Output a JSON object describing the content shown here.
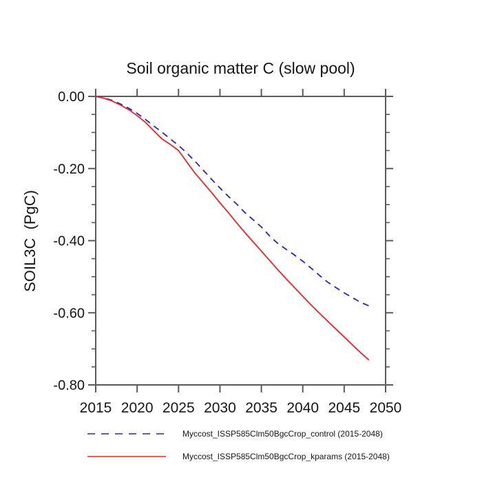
{
  "page": {
    "background": "#ffffff"
  },
  "chart_data": {
    "type": "line",
    "title": "Soil organic matter C (slow pool)",
    "xlabel": "",
    "ylabel": "SOIL3C  (PgC)",
    "xlim": [
      2015,
      2050
    ],
    "ylim": [
      -0.8,
      0.0
    ],
    "grid": false,
    "legend_position": "below-plot",
    "axis_color": "#5a5a5a",
    "text_color": "#151515",
    "x_ticks": [
      2015,
      2020,
      2025,
      2030,
      2035,
      2040,
      2045,
      2050
    ],
    "x_tick_labels": [
      "2015",
      "2020",
      "2025",
      "2030",
      "2035",
      "2040",
      "2045",
      "2050"
    ],
    "y_ticks": [
      0.0,
      -0.2,
      -0.4,
      -0.6,
      -0.8
    ],
    "y_tick_labels": [
      "0.00",
      "-0.20",
      "-0.40",
      "-0.60",
      "-0.80"
    ],
    "y_minor_step": 0.05,
    "x": [
      2015,
      2016,
      2017,
      2018,
      2019,
      2020,
      2021,
      2022,
      2023,
      2024,
      2025,
      2026,
      2027,
      2028,
      2029,
      2030,
      2031,
      2032,
      2033,
      2034,
      2035,
      2036,
      2037,
      2038,
      2039,
      2040,
      2041,
      2042,
      2043,
      2044,
      2045,
      2046,
      2047,
      2048
    ],
    "series": [
      {
        "name": "Myccost_ISSP585Clm50BgcCrop_control (2015-2048)",
        "color": "#2222d3",
        "style": "dashed",
        "values": [
          0.0,
          -0.004,
          -0.011,
          -0.021,
          -0.033,
          -0.047,
          -0.064,
          -0.082,
          -0.099,
          -0.118,
          -0.136,
          -0.157,
          -0.18,
          -0.205,
          -0.23,
          -0.254,
          -0.277,
          -0.298,
          -0.322,
          -0.342,
          -0.362,
          -0.387,
          -0.408,
          -0.424,
          -0.44,
          -0.457,
          -0.476,
          -0.496,
          -0.515,
          -0.53,
          -0.545,
          -0.558,
          -0.571,
          -0.581
        ]
      },
      {
        "name": "Myccost_ISSP585Clm50BgcCrop_kparams (2015-2048)",
        "color": "#ee2222",
        "style": "solid",
        "values": [
          0.0,
          -0.005,
          -0.013,
          -0.024,
          -0.037,
          -0.053,
          -0.072,
          -0.095,
          -0.118,
          -0.133,
          -0.15,
          -0.182,
          -0.213,
          -0.24,
          -0.267,
          -0.295,
          -0.322,
          -0.35,
          -0.377,
          -0.403,
          -0.429,
          -0.455,
          -0.481,
          -0.506,
          -0.53,
          -0.554,
          -0.578,
          -0.601,
          -0.623,
          -0.645,
          -0.667,
          -0.689,
          -0.711,
          -0.731
        ]
      }
    ]
  }
}
